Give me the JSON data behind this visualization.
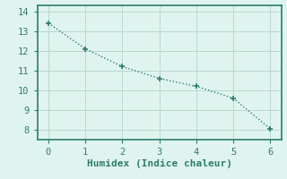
{
  "x": [
    0,
    1,
    2,
    3,
    4,
    5,
    6
  ],
  "y": [
    13.4,
    12.1,
    11.2,
    10.6,
    10.2,
    9.6,
    8.05
  ],
  "xlabel": "Humidex (Indice chaleur)",
  "xlim": [
    -0.3,
    6.3
  ],
  "ylim": [
    7.5,
    14.3
  ],
  "yticks": [
    8,
    9,
    10,
    11,
    12,
    13,
    14
  ],
  "xticks": [
    0,
    1,
    2,
    3,
    4,
    5,
    6
  ],
  "line_color": "#2e7d6e",
  "bg_color": "#dff4ee",
  "grid_color": "#b8d8d0",
  "spine_color": "#2e7d6e",
  "xlabel_fontsize": 8,
  "tick_fontsize": 7.5
}
